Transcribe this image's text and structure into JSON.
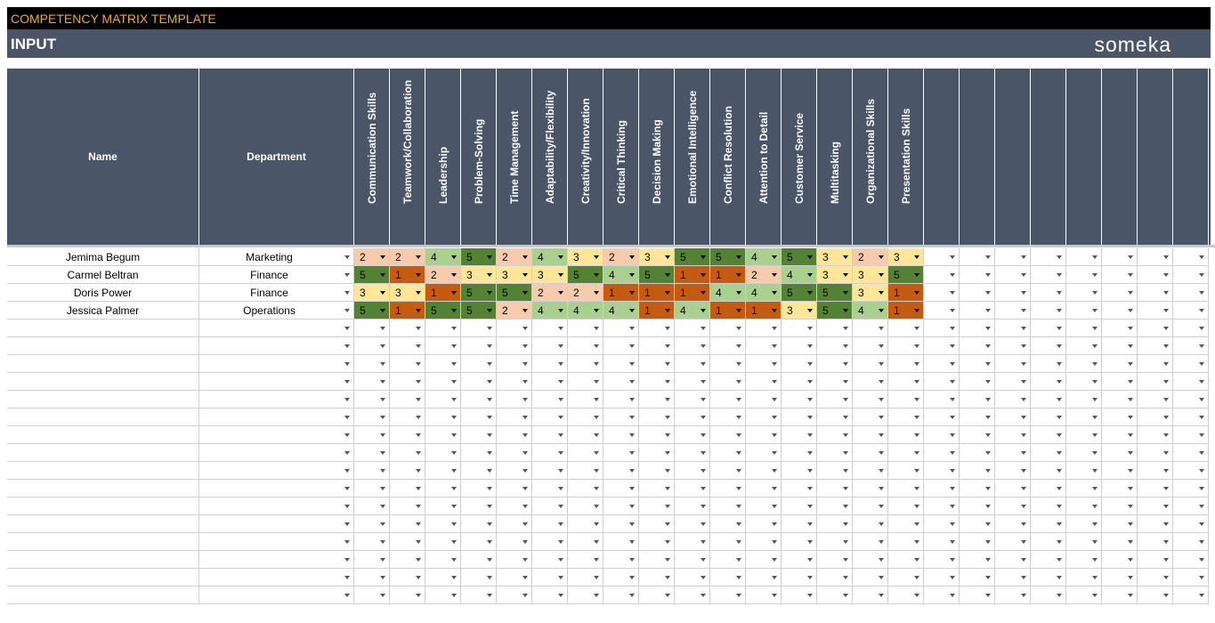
{
  "title": "COMPETENCY MATRIX TEMPLATE",
  "section": "INPUT",
  "brand": "someka",
  "colors": {
    "title_bg": "#000000",
    "title_text": "#f0a830",
    "header_bg": "#4a5568",
    "score_1": "#c55a11",
    "score_2": "#f8cbad",
    "score_3": "#ffe699",
    "score_4": "#a9d08e",
    "score_5": "#548235"
  },
  "columns": {
    "name": "Name",
    "department": "Department",
    "competencies": [
      "Communication Skills",
      "Teamwork/Collaboration",
      "Leadership",
      "Problem-Solving",
      "Time Management",
      "Adaptability/Flexibility",
      "Creativity/Innovation",
      "Critical Thinking",
      "Decision Making",
      "Emotional Intelligence",
      "Conflict Resolution",
      "Attention to Detail",
      "Customer Service",
      "Multitasking",
      "Organizational Skills",
      "Presentation Skills"
    ],
    "blank_count": 8
  },
  "rows": [
    {
      "name": "Jemima Begum",
      "department": "Marketing",
      "scores": [
        2,
        2,
        4,
        5,
        2,
        4,
        3,
        2,
        3,
        5,
        5,
        4,
        5,
        3,
        2,
        3
      ]
    },
    {
      "name": "Carmel Beltran",
      "department": "Finance",
      "scores": [
        5,
        1,
        2,
        3,
        3,
        3,
        5,
        4,
        5,
        1,
        1,
        2,
        4,
        3,
        3,
        5
      ]
    },
    {
      "name": "Doris Power",
      "department": "Finance",
      "scores": [
        3,
        3,
        1,
        5,
        5,
        2,
        2,
        1,
        1,
        1,
        4,
        4,
        5,
        5,
        3,
        1
      ]
    },
    {
      "name": "Jessica Palmer",
      "department": "Operations",
      "scores": [
        5,
        1,
        5,
        5,
        2,
        4,
        4,
        4,
        1,
        4,
        1,
        1,
        3,
        5,
        4,
        1
      ]
    }
  ],
  "empty_rows": 16
}
